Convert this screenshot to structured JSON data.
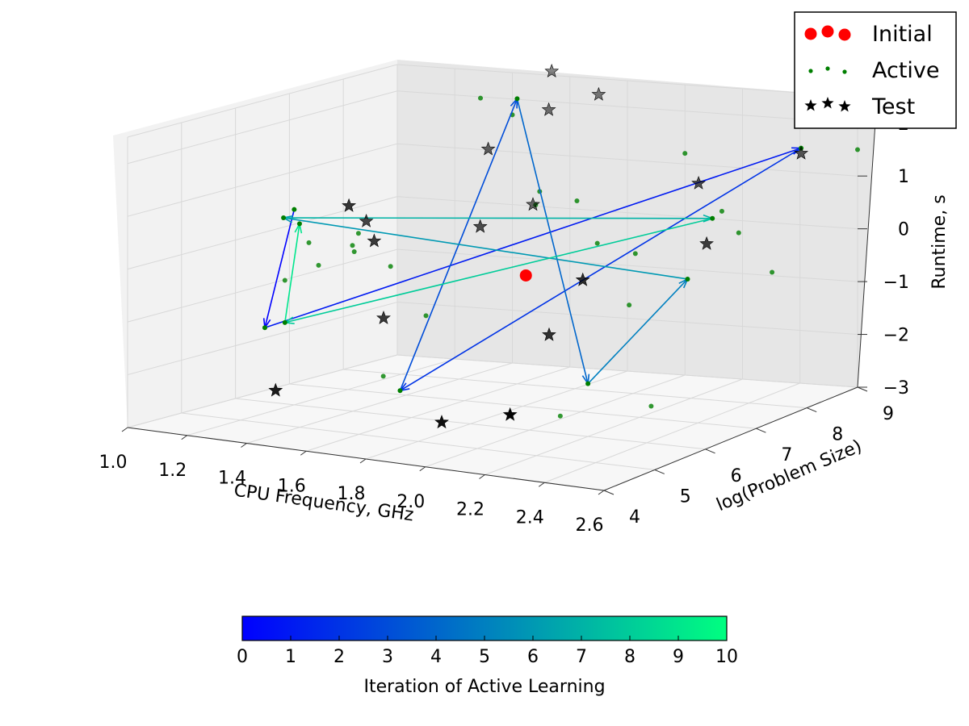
{
  "chart_data": {
    "type": "scatter",
    "projection": "3d",
    "xlabel": "CPU Frequency, GHz",
    "ylabel": "log(Problem Size)",
    "zlabel": "Runtime, s",
    "xlim": [
      1.0,
      2.6
    ],
    "ylim": [
      4,
      9
    ],
    "zlim": [
      -3,
      2.5
    ],
    "xticks": [
      "1.0",
      "1.2",
      "1.4",
      "1.6",
      "1.8",
      "2.0",
      "2.2",
      "2.4",
      "2.6"
    ],
    "yticks": [
      "4",
      "5",
      "6",
      "7",
      "8",
      "9"
    ],
    "zticks": [
      "−3",
      "−2",
      "−1",
      "0",
      "1",
      "2"
    ],
    "grid": true,
    "legend": {
      "position": "top-right",
      "entries": [
        {
          "label": "Initial",
          "marker": "large-circle",
          "color": "#ff0000"
        },
        {
          "label": "Active",
          "marker": "small-circle",
          "color": "#007f00"
        },
        {
          "label": "Test",
          "marker": "star",
          "color": "#000000"
        }
      ]
    },
    "colorbar": {
      "label": "Iteration of Active Learning",
      "range": [
        0,
        10
      ],
      "ticks": [
        "0",
        "1",
        "2",
        "3",
        "4",
        "5",
        "6",
        "7",
        "8",
        "9",
        "10"
      ],
      "colormap": [
        "#0000ff",
        "#00ff80"
      ],
      "orientation": "horizontal",
      "position": "bottom"
    },
    "series": [
      {
        "name": "Initial",
        "points": [
          {
            "x": 1.9,
            "y": 6.5,
            "z": -0.3
          }
        ]
      },
      {
        "name": "Active",
        "points": [
          {
            "x": 2.35,
            "y": 4.6,
            "z": -2.0
          },
          {
            "x": 1.15,
            "y": 6.1,
            "z": -0.7
          },
          {
            "x": 1.4,
            "y": 8.4,
            "z": 2.2
          },
          {
            "x": 1.75,
            "y": 8.7,
            "z": -0.5
          },
          {
            "x": 1.05,
            "y": 7.9,
            "z": -0.6
          },
          {
            "x": 2.55,
            "y": 7.6,
            "z": -0.3
          },
          {
            "x": 1.4,
            "y": 9.0,
            "z": 1.7
          },
          {
            "x": 1.25,
            "y": 6.0,
            "z": 0.1
          },
          {
            "x": 1.35,
            "y": 6.3,
            "z": -0.1
          },
          {
            "x": 1.2,
            "y": 7.8,
            "z": -0.9
          },
          {
            "x": 1.45,
            "y": 7.1,
            "z": -1.5
          },
          {
            "x": 1.7,
            "y": 4.9,
            "z": -1.8
          },
          {
            "x": 2.45,
            "y": 5.8,
            "z": -2.2
          },
          {
            "x": 1.7,
            "y": 7.8,
            "z": 0.5
          },
          {
            "x": 1.95,
            "y": 7.2,
            "z": 0.9
          },
          {
            "x": 2.0,
            "y": 9.0,
            "z": 1.2
          },
          {
            "x": 2.2,
            "y": 6.8,
            "z": -0.8
          },
          {
            "x": 1.9,
            "y": 8.6,
            "z": -0.6
          },
          {
            "x": 2.5,
            "y": 6.9,
            "z": 1.1
          },
          {
            "x": 2.6,
            "y": 9.0,
            "z": 1.5
          },
          {
            "x": 1.55,
            "y": 8.7,
            "z": 0.4
          },
          {
            "x": 1.1,
            "y": 7.0,
            "z": -0.7
          },
          {
            "x": 1.2,
            "y": 7.2,
            "z": -0.1
          },
          {
            "x": 2.4,
            "y": 7.8,
            "z": 0.3
          }
        ]
      },
      {
        "name": "Test",
        "points": [
          {
            "x": 1.3,
            "y": 5.1,
            "z": -2.4
          },
          {
            "x": 1.95,
            "y": 4.6,
            "z": -2.4
          },
          {
            "x": 2.25,
            "y": 4.2,
            "z": -1.9
          },
          {
            "x": 1.45,
            "y": 6.3,
            "z": -1.3
          },
          {
            "x": 2.05,
            "y": 6.1,
            "z": -1.2
          },
          {
            "x": 1.35,
            "y": 6.2,
            "z": 0.8
          },
          {
            "x": 1.6,
            "y": 8.3,
            "z": 0.3
          },
          {
            "x": 1.6,
            "y": 7.3,
            "z": 0.2
          },
          {
            "x": 1.4,
            "y": 6.4,
            "z": 0.1
          },
          {
            "x": 1.3,
            "y": 6.8,
            "z": 0.3
          },
          {
            "x": 2.2,
            "y": 5.9,
            "z": 0.0
          },
          {
            "x": 2.5,
            "y": 6.6,
            "z": 0.6
          },
          {
            "x": 2.35,
            "y": 7.3,
            "z": 1.4
          },
          {
            "x": 2.65,
            "y": 7.6,
            "z": 2.0
          },
          {
            "x": 1.5,
            "y": 8.0,
            "z": 1.4
          },
          {
            "x": 1.6,
            "y": 8.6,
            "z": 2.0
          },
          {
            "x": 1.7,
            "y": 9.0,
            "z": 2.2
          },
          {
            "x": 1.5,
            "y": 9.2,
            "z": 2.5
          }
        ]
      }
    ],
    "active_learning_path": {
      "description_of_order": "iteration 0 to 10",
      "points": [
        {
          "iteration": 0,
          "x": 1.2,
          "y": 6.0,
          "z": 0.7
        },
        {
          "iteration": 1,
          "x": 1.1,
          "y": 6.0,
          "z": -1.6
        },
        {
          "iteration": 2,
          "x": 2.65,
          "y": 7.6,
          "z": 2.1
        },
        {
          "iteration": 3,
          "x": 1.65,
          "y": 5.5,
          "z": -2.3
        },
        {
          "iteration": 4,
          "x": 1.6,
          "y": 8.0,
          "z": 2.4
        },
        {
          "iteration": 5,
          "x": 2.2,
          "y": 6.0,
          "z": -2.0
        },
        {
          "iteration": 6,
          "x": 2.4,
          "y": 6.8,
          "z": -0.2
        },
        {
          "iteration": 7,
          "x": 1.2,
          "y": 5.8,
          "z": 0.6
        },
        {
          "iteration": 8,
          "x": 2.45,
          "y": 7.0,
          "z": 0.9
        },
        {
          "iteration": 9,
          "x": 1.15,
          "y": 6.1,
          "z": -1.5
        },
        {
          "iteration": 10,
          "x": 1.2,
          "y": 6.1,
          "z": 0.4
        }
      ]
    }
  }
}
